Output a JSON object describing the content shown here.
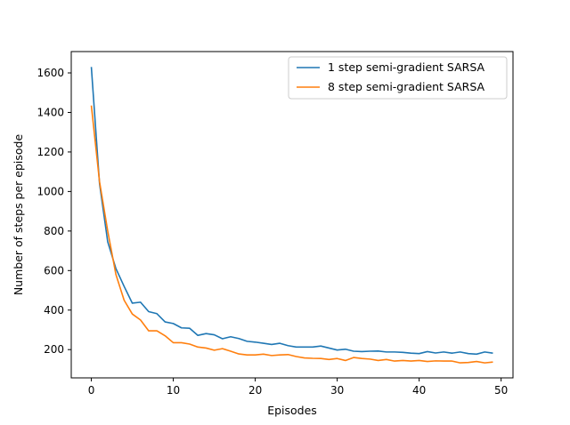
{
  "chart_data": {
    "type": "line",
    "title": "",
    "xlabel": "Episodes",
    "ylabel": "Number of steps per episode",
    "xlim": [
      -2.45,
      51.45
    ],
    "ylim": [
      57,
      1708
    ],
    "xticks": [
      0,
      10,
      20,
      30,
      40,
      50
    ],
    "yticks": [
      200,
      400,
      600,
      800,
      1000,
      1200,
      1400,
      1600
    ],
    "grid": false,
    "legend_position": "top-right",
    "x": [
      0,
      1,
      2,
      3,
      4,
      5,
      6,
      7,
      8,
      9,
      10,
      11,
      12,
      13,
      14,
      15,
      16,
      17,
      18,
      19,
      20,
      21,
      22,
      23,
      24,
      25,
      26,
      27,
      28,
      29,
      30,
      31,
      32,
      33,
      34,
      35,
      36,
      37,
      38,
      39,
      40,
      41,
      42,
      43,
      44,
      45,
      46,
      47,
      48,
      49
    ],
    "series": [
      {
        "name": "1 step semi-gradient SARSA",
        "color": "#1f77b4",
        "values": [
          1630,
          1040,
          745,
          610,
          520,
          435,
          440,
          392,
          382,
          340,
          332,
          310,
          308,
          272,
          281,
          275,
          255,
          265,
          256,
          242,
          238,
          232,
          226,
          232,
          220,
          213,
          213,
          213,
          218,
          208,
          198,
          202,
          192,
          190,
          192,
          193,
          188,
          188,
          186,
          182,
          180,
          190,
          183,
          188,
          182,
          188,
          180,
          177,
          188,
          182
        ]
      },
      {
        "name": "8 step semi-gradient SARSA",
        "color": "#ff7f0e",
        "values": [
          1435,
          1050,
          800,
          580,
          450,
          380,
          350,
          295,
          295,
          270,
          235,
          235,
          228,
          213,
          208,
          197,
          205,
          192,
          178,
          173,
          173,
          177,
          170,
          173,
          175,
          165,
          158,
          156,
          155,
          150,
          155,
          145,
          160,
          155,
          152,
          145,
          150,
          142,
          145,
          142,
          145,
          140,
          143,
          142,
          142,
          133,
          135,
          140,
          133,
          137
        ]
      }
    ]
  }
}
